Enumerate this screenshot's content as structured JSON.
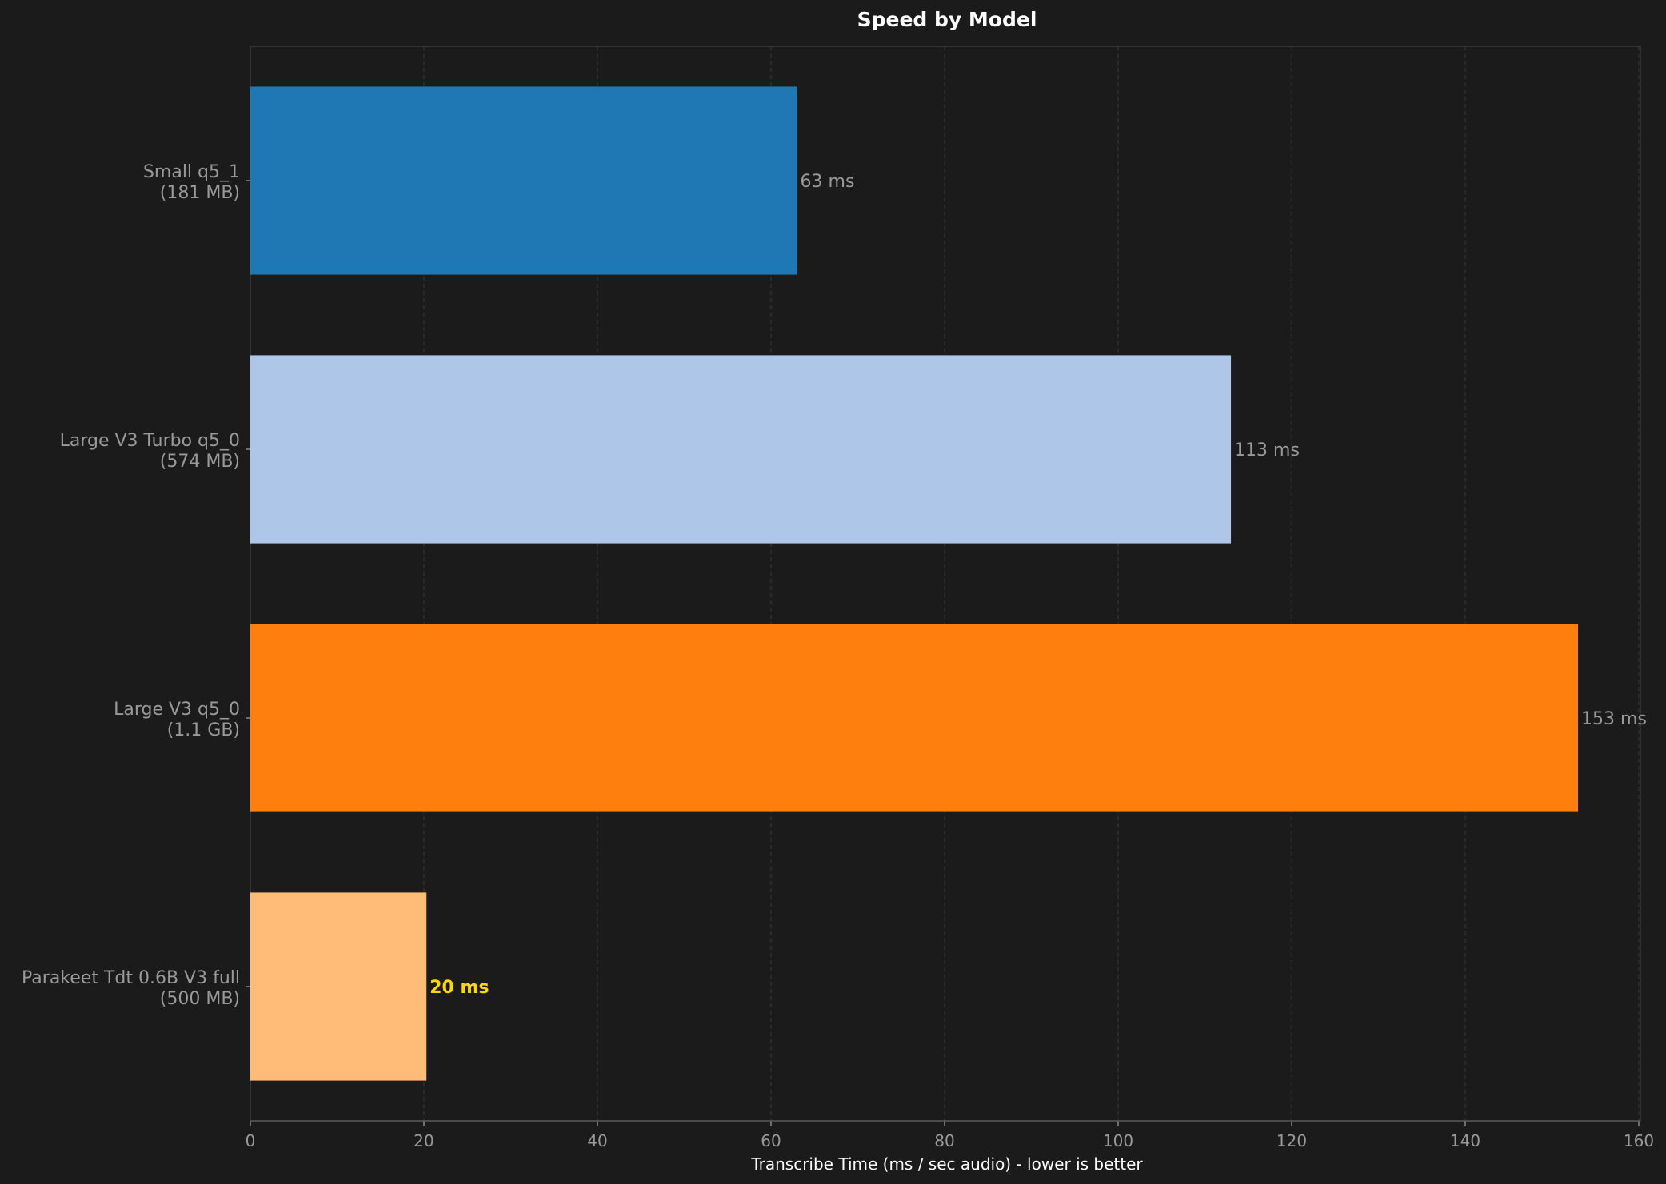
{
  "chart_data": {
    "type": "bar",
    "orientation": "horizontal",
    "title": "Speed by Model",
    "xlabel": "Transcribe Time (ms / sec audio) - lower is better",
    "ylabel": "",
    "xlim": [
      0,
      160
    ],
    "xticks": [
      "0",
      "20",
      "40",
      "60",
      "80",
      "100",
      "120",
      "140",
      "160"
    ],
    "grid": "vertical dashed",
    "legend": "none",
    "background": "#1b1b1b",
    "bars": [
      {
        "model": "Small q5_1",
        "size": "(181 MB)",
        "value": 63,
        "label": "63 ms",
        "color": "#1f77b4",
        "highlight": false
      },
      {
        "model": "Large V3 Turbo q5_0",
        "size": "(574 MB)",
        "value": 113,
        "label": "113 ms",
        "color": "#aec7e8",
        "highlight": false
      },
      {
        "model": "Large V3 q5_0",
        "size": "(1.1 GB)",
        "value": 153,
        "label": "153 ms",
        "color": "#ff7f0e",
        "highlight": false
      },
      {
        "model": "Parakeet Tdt 0.6B V3 full",
        "size": "(500 MB)",
        "value": 20.3,
        "label": "20 ms",
        "color": "#ffbb78",
        "highlight": true
      }
    ],
    "highlight_color": "#ffd700"
  }
}
